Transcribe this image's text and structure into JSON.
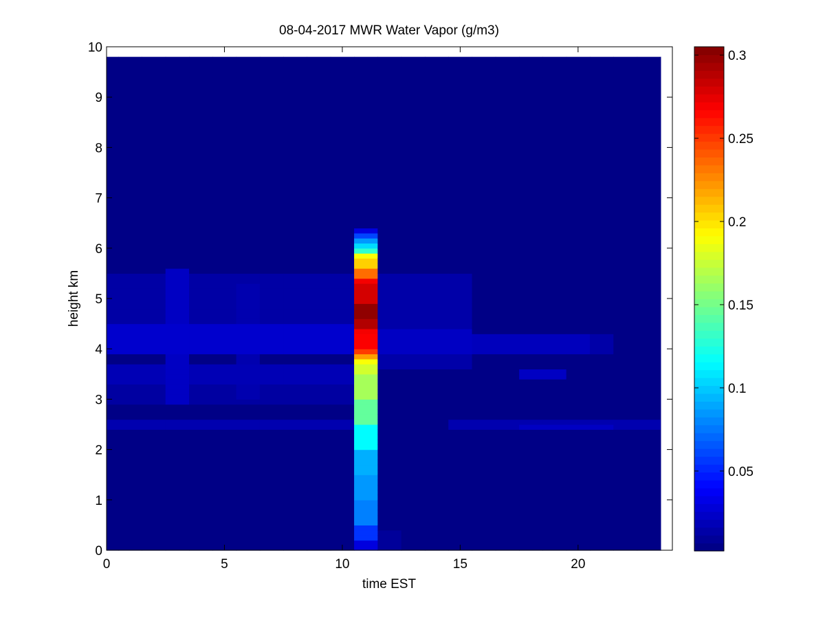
{
  "chart_data": {
    "type": "heatmap",
    "title": "08-04-2017 MWR Water Vapor (g/m3)",
    "xlabel": "time EST",
    "ylabel": "height km",
    "xlim": [
      0,
      24
    ],
    "ylim": [
      0,
      10
    ],
    "xticks": [
      0,
      5,
      10,
      15,
      20
    ],
    "yticks": [
      0,
      1,
      2,
      3,
      4,
      5,
      6,
      7,
      8,
      9,
      10
    ],
    "colorbar": {
      "colormap": "jet",
      "range": [
        0.002,
        0.305
      ],
      "ticks": [
        0.05,
        0.1,
        0.15,
        0.2,
        0.25,
        0.3
      ],
      "tick_labels": [
        "0.05",
        "0.1",
        "0.15",
        "0.2",
        "0.25",
        "0.3"
      ]
    },
    "grid": {
      "x_start": 0,
      "x_end": 23.5,
      "dx": 1,
      "y_start": 0,
      "y_end": 9.75,
      "dy": 0.1,
      "background_value": 0.004
    },
    "features": [
      {
        "x0": 0,
        "x1": 10.5,
        "y0": 2.4,
        "y1": 2.6,
        "value": 0.016
      },
      {
        "x0": 14.5,
        "x1": 23.5,
        "y0": 2.4,
        "y1": 2.6,
        "value": 0.016
      },
      {
        "x0": 17.5,
        "x1": 21.5,
        "y0": 2.45,
        "y1": 2.55,
        "value": 0.022
      },
      {
        "x0": 0,
        "x1": 10.5,
        "y0": 2.9,
        "y1": 3.5,
        "value": 0.012
      },
      {
        "x0": 0,
        "x1": 10.5,
        "y0": 3.3,
        "y1": 3.7,
        "value": 0.018
      },
      {
        "x0": 0,
        "x1": 10.5,
        "y0": 3.9,
        "y1": 4.5,
        "value": 0.025
      },
      {
        "x0": 0,
        "x1": 10.5,
        "y0": 4.5,
        "y1": 5.5,
        "value": 0.013
      },
      {
        "x0": 2.5,
        "x1": 3.5,
        "y0": 2.9,
        "y1": 5.6,
        "value": 0.022
      },
      {
        "x0": 5.5,
        "x1": 6.5,
        "y0": 3.0,
        "y1": 5.3,
        "value": 0.016
      },
      {
        "x0": 11.5,
        "x1": 15.5,
        "y0": 3.6,
        "y1": 5.5,
        "value": 0.014
      },
      {
        "x0": 11.5,
        "x1": 15.5,
        "y0": 3.9,
        "y1": 4.4,
        "value": 0.022
      },
      {
        "x0": 15.5,
        "x1": 20.5,
        "y0": 3.9,
        "y1": 4.3,
        "value": 0.02
      },
      {
        "x0": 20.5,
        "x1": 21.5,
        "y0": 3.9,
        "y1": 4.3,
        "value": 0.014
      },
      {
        "x0": 17.5,
        "x1": 19.5,
        "y0": 3.4,
        "y1": 3.6,
        "value": 0.022
      },
      {
        "x0": 11.5,
        "x1": 12.5,
        "y0": 0,
        "y1": 0.4,
        "value": 0.01
      }
    ],
    "column": {
      "x0": 10.5,
      "x1": 11.5,
      "profile": [
        {
          "h": 0.0,
          "value": 0.03
        },
        {
          "h": 0.2,
          "value": 0.055
        },
        {
          "h": 0.5,
          "value": 0.078
        },
        {
          "h": 1.0,
          "value": 0.085
        },
        {
          "h": 1.5,
          "value": 0.092
        },
        {
          "h": 2.0,
          "value": 0.115
        },
        {
          "h": 2.5,
          "value": 0.145
        },
        {
          "h": 3.0,
          "value": 0.165
        },
        {
          "h": 3.5,
          "value": 0.178
        },
        {
          "h": 3.7,
          "value": 0.19
        },
        {
          "h": 3.8,
          "value": 0.22
        },
        {
          "h": 3.9,
          "value": 0.25
        },
        {
          "h": 4.0,
          "value": 0.268
        },
        {
          "h": 4.3,
          "value": 0.27
        },
        {
          "h": 4.4,
          "value": 0.29
        },
        {
          "h": 4.6,
          "value": 0.3
        },
        {
          "h": 4.9,
          "value": 0.28
        },
        {
          "h": 5.3,
          "value": 0.27
        },
        {
          "h": 5.45,
          "value": 0.235
        },
        {
          "h": 5.6,
          "value": 0.205
        },
        {
          "h": 5.8,
          "value": 0.19
        },
        {
          "h": 5.9,
          "value": 0.13
        },
        {
          "h": 6.0,
          "value": 0.105
        },
        {
          "h": 6.1,
          "value": 0.085
        },
        {
          "h": 6.2,
          "value": 0.06
        },
        {
          "h": 6.3,
          "value": 0.03
        },
        {
          "h": 6.45,
          "value": 0.004
        }
      ]
    }
  },
  "colors": {
    "axes": "#000000",
    "background": "#ffffff"
  }
}
